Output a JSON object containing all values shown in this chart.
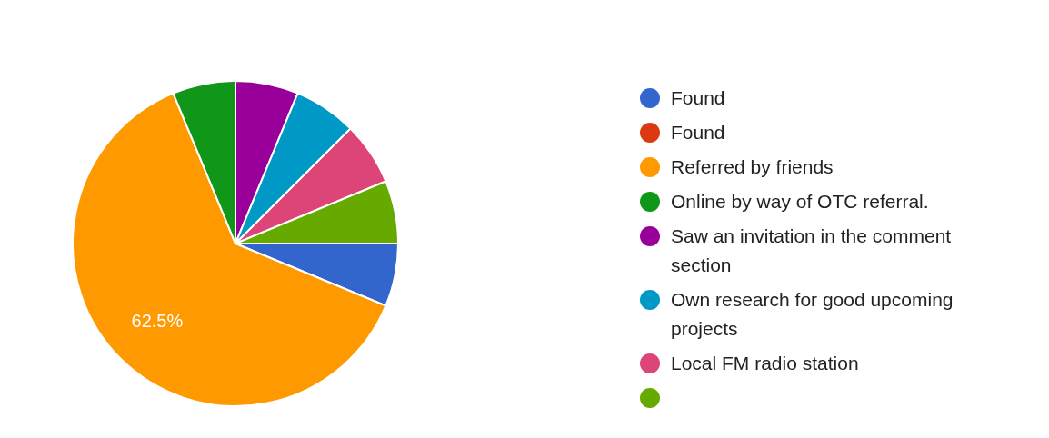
{
  "chart_data": {
    "type": "pie",
    "categories": [
      "Found",
      "Found",
      "Referred by friends",
      "Online by way of OTC referral.",
      "Saw an invitation in the comment section",
      "Own research for good upcoming projects",
      "Local FM radio station",
      null
    ],
    "values": [
      6.25,
      0,
      62.5,
      6.25,
      6.25,
      6.25,
      6.25,
      6.25
    ],
    "colors": [
      "#3366cc",
      "#dc3912",
      "#ff9900",
      "#109618",
      "#990099",
      "#0099c6",
      "#dd4477",
      "#66aa00"
    ],
    "value_labels": [
      null,
      null,
      "62.5%",
      null,
      null,
      null,
      null,
      null
    ],
    "legend": "right"
  }
}
